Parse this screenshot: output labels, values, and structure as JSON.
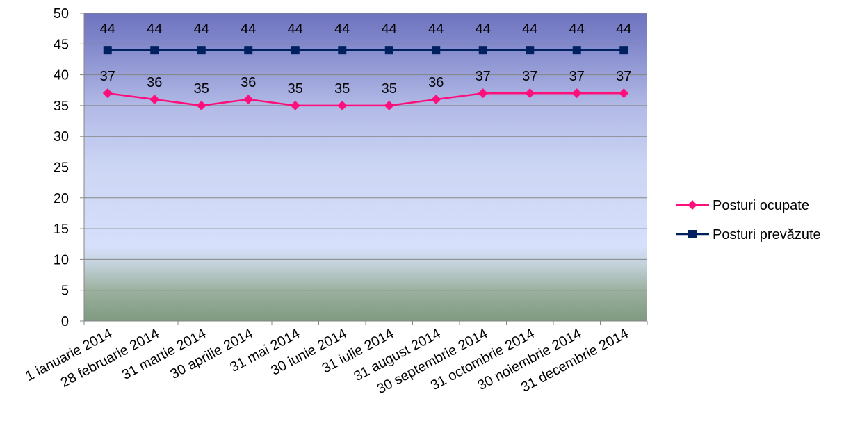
{
  "chart_data": {
    "type": "line",
    "categories": [
      "1 ianuarie 2014",
      "28 februarie 2014",
      "31 martie 2014",
      "30 aprilie 2014",
      "31 mai 2014",
      "30 iunie 2014",
      "31 iulie 2014",
      "31 august 2014",
      "30 septembrie 2014",
      "31 octombrie 2014",
      "30 noiembrie 2014",
      "31 decembrie 2014"
    ],
    "series": [
      {
        "name": "Posturi ocupate",
        "values": [
          37,
          36,
          35,
          36,
          35,
          35,
          35,
          36,
          37,
          37,
          37,
          37
        ],
        "color": "#ff0f7b",
        "marker": "diamond"
      },
      {
        "name": "Posturi prevăzute",
        "values": [
          44,
          44,
          44,
          44,
          44,
          44,
          44,
          44,
          44,
          44,
          44,
          44
        ],
        "color": "#002060",
        "marker": "square"
      }
    ],
    "ylim": [
      0,
      50
    ],
    "ytick_step": 5,
    "yticks": [
      "0",
      "5",
      "10",
      "15",
      "20",
      "25",
      "30",
      "35",
      "40",
      "45",
      "50"
    ],
    "grid": true,
    "data_labels": true,
    "legend_position": "right",
    "title": "",
    "xlabel": "",
    "ylabel": ""
  }
}
